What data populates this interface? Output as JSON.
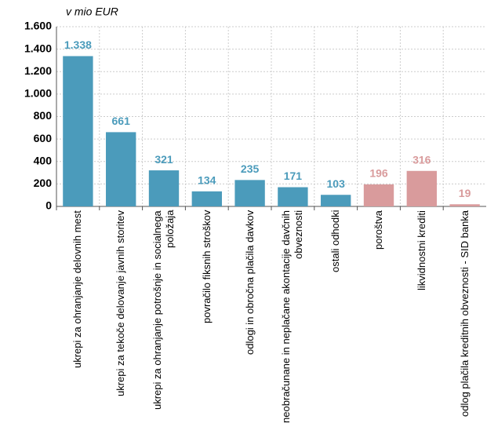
{
  "chart_data": {
    "type": "bar",
    "y_title": "v mio EUR",
    "categories": [
      "ukrepi za ohranjanje delovnih mest",
      "ukrepi za tekoče delovanje javnih storitev",
      "ukrepi za ohranjanje potrošnje in socialnega položaja",
      "povračilo fiksnih stroškov",
      "odlogi in obročna plačila davkov",
      "neobračunane in neplačane akontacije davčnih obveznosti",
      "ostali odhodki",
      "poroštva",
      "likvidnostni krediti",
      "odlog plačila kreditnih obveznosti - SID banka"
    ],
    "values": [
      1338,
      661,
      321,
      134,
      235,
      171,
      103,
      196,
      316,
      19
    ],
    "value_labels": [
      "1.338",
      "661",
      "321",
      "134",
      "235",
      "171",
      "103",
      "196",
      "316",
      "19"
    ],
    "colors": [
      "#4b9bbb",
      "#4b9bbb",
      "#4b9bbb",
      "#4b9bbb",
      "#4b9bbb",
      "#4b9bbb",
      "#4b9bbb",
      "#d99b9c",
      "#d99b9c",
      "#d99b9c"
    ],
    "ylim": [
      0,
      1600
    ],
    "yticks": [
      0,
      200,
      400,
      600,
      800,
      {
        "value": 1000,
        "label": "1.000"
      },
      {
        "value": 1200,
        "label": "1.200"
      },
      {
        "value": 1400,
        "label": "1.400"
      },
      {
        "value": 1600,
        "label": "1.600"
      }
    ],
    "grid": true
  }
}
